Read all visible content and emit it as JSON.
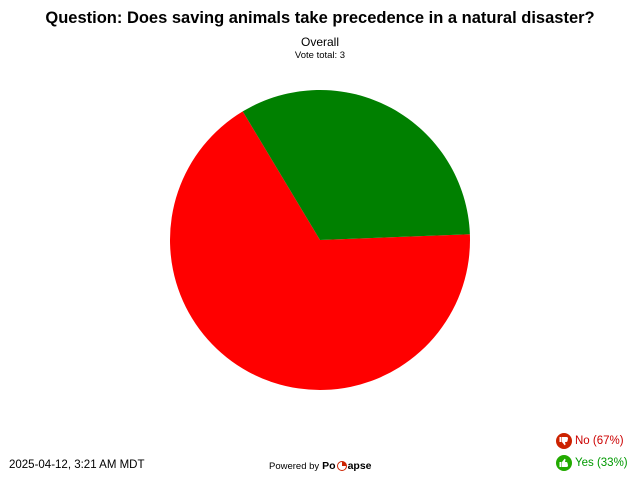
{
  "chart_data": {
    "type": "pie",
    "title": "Question: Does saving animals take precedence in a natural disaster?",
    "subtitle": "Overall",
    "vote_total_label": "Vote total: 3",
    "categories": [
      "No",
      "Yes"
    ],
    "values": [
      67,
      33
    ],
    "colors": [
      "#ff0000",
      "#008000"
    ],
    "legend": [
      {
        "label": "No (67%)",
        "color": "#cc0000",
        "icon": "thumbs-down-icon"
      },
      {
        "label": "Yes (33%)",
        "color": "#009900",
        "icon": "thumbs-up-icon"
      }
    ],
    "legend_position": "bottom-right"
  },
  "footer": {
    "timestamp": "2025-04-12, 3:21 AM MDT",
    "powered_by": "Powered by",
    "brand_start": "Po",
    "brand_end": "apse"
  }
}
